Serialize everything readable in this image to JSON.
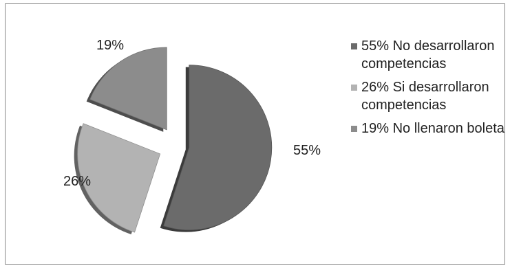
{
  "chart_data": {
    "type": "pie",
    "title": "",
    "exploded": true,
    "shading": "3d",
    "slices": [
      {
        "label": "55%",
        "value": 55,
        "legend": "55% No desarrollaron competencias",
        "color": "#6b6b6b"
      },
      {
        "label": "26%",
        "value": 26,
        "legend": "26% Si desarrollaron competencias",
        "color": "#b3b3b3"
      },
      {
        "label": "19%",
        "value": 19,
        "legend": "19% No llenaron boleta",
        "color": "#8c8c8c"
      }
    ],
    "legend_position": "right"
  }
}
